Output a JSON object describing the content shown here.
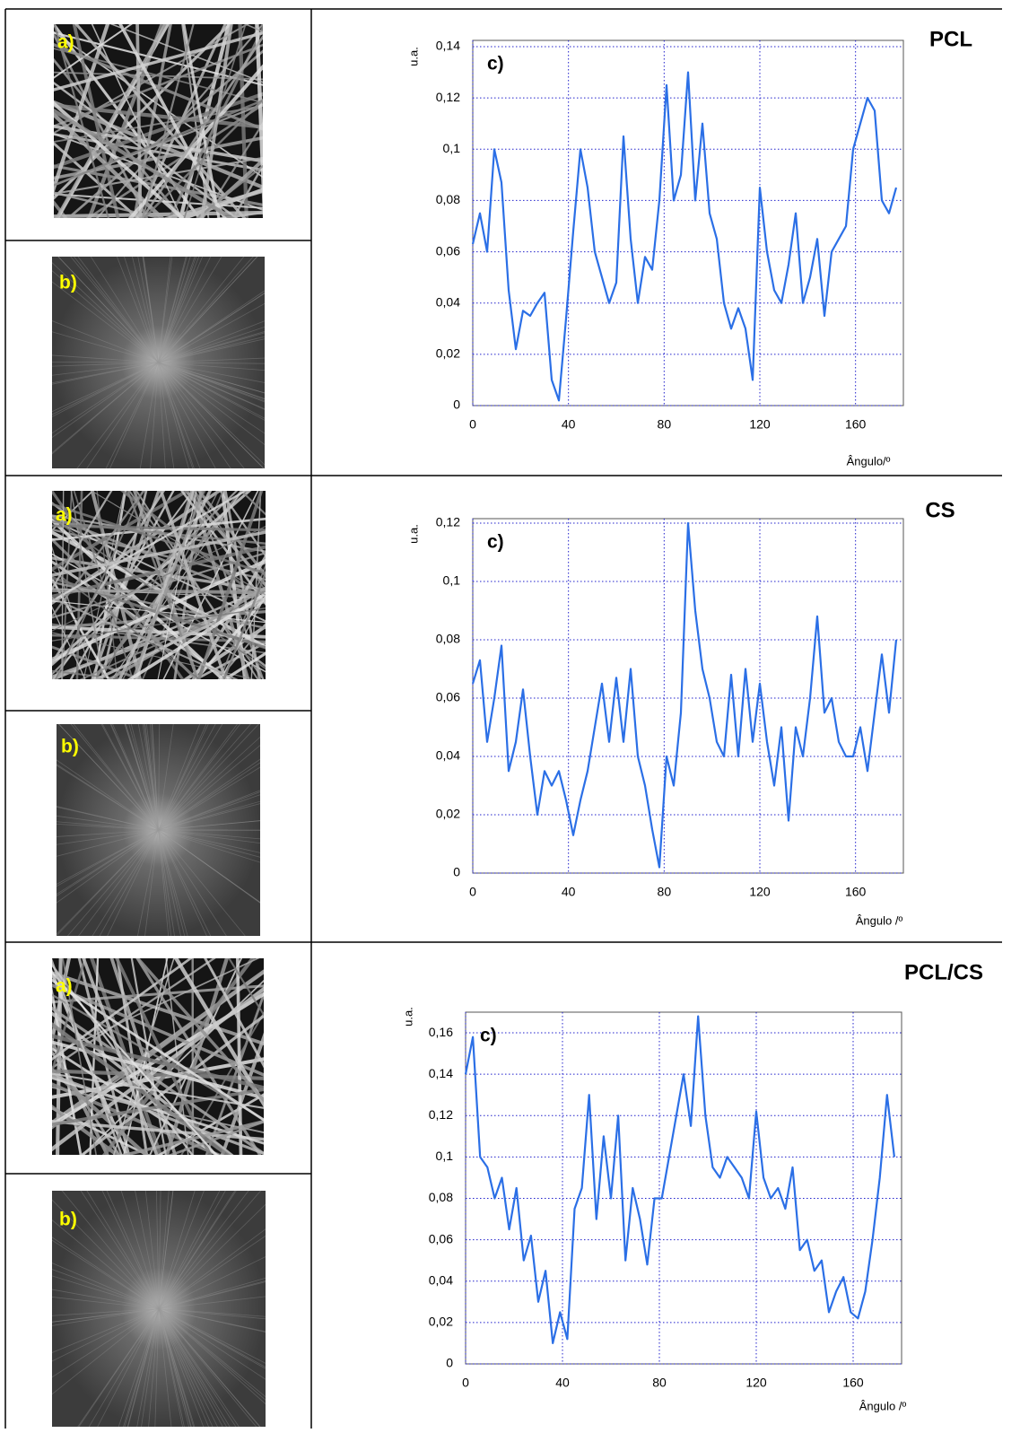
{
  "image_labels": [
    [
      "a)",
      "b)"
    ],
    [
      "a)",
      "b)"
    ],
    [
      "a)",
      "b)"
    ]
  ],
  "chart_data": [
    {
      "type": "line",
      "title": "PCL",
      "annotation": "c)",
      "ylabel": "u.a.",
      "xlabel": "Ângulo/º",
      "color": "#2b6fe6",
      "grid": true,
      "x": [
        0,
        3,
        6,
        9,
        12,
        15,
        18,
        21,
        24,
        27,
        30,
        33,
        36,
        39,
        42,
        45,
        48,
        51,
        54,
        57,
        60,
        63,
        66,
        69,
        72,
        75,
        78,
        81,
        84,
        87,
        90,
        93,
        96,
        99,
        102,
        105,
        108,
        111,
        114,
        117,
        120,
        123,
        126,
        129,
        132,
        135,
        138,
        141,
        144,
        147,
        150,
        153,
        156,
        159,
        162,
        165,
        168,
        171,
        174,
        177
      ],
      "values": [
        0.063,
        0.075,
        0.06,
        0.1,
        0.087,
        0.045,
        0.022,
        0.037,
        0.035,
        0.04,
        0.044,
        0.01,
        0.002,
        0.034,
        0.068,
        0.1,
        0.085,
        0.06,
        0.05,
        0.04,
        0.048,
        0.105,
        0.065,
        0.04,
        0.058,
        0.053,
        0.08,
        0.125,
        0.08,
        0.09,
        0.13,
        0.08,
        0.11,
        0.075,
        0.065,
        0.04,
        0.03,
        0.038,
        0.03,
        0.01,
        0.085,
        0.06,
        0.045,
        0.04,
        0.055,
        0.075,
        0.04,
        0.05,
        0.065,
        0.035,
        0.06,
        0.065,
        0.07,
        0.1,
        0.11,
        0.12,
        0.115,
        0.08,
        0.075,
        0.085
      ],
      "xlim": [
        0,
        180
      ],
      "ylim": [
        0,
        0.14
      ],
      "xticks": [
        0,
        40,
        80,
        120,
        160
      ],
      "yticks": [
        0,
        {
          "value": 0.02,
          "label": "0,02"
        },
        {
          "value": 0.04,
          "label": "0,04"
        },
        {
          "value": 0.06,
          "label": "0,06"
        },
        {
          "value": 0.08,
          "label": "0,08"
        },
        {
          "value": 0.1,
          "label": "0,1"
        },
        {
          "value": 0.12,
          "label": "0,12"
        },
        {
          "value": 0.14,
          "label": "0,14"
        }
      ]
    },
    {
      "type": "line",
      "title": "CS",
      "annotation": "c)",
      "ylabel": "u.a.",
      "xlabel": "Ângulo /º",
      "color": "#2b6fe6",
      "grid": true,
      "x": [
        0,
        3,
        6,
        9,
        12,
        15,
        18,
        21,
        24,
        27,
        30,
        33,
        36,
        39,
        42,
        45,
        48,
        51,
        54,
        57,
        60,
        63,
        66,
        69,
        72,
        75,
        78,
        81,
        84,
        87,
        90,
        93,
        96,
        99,
        102,
        105,
        108,
        111,
        114,
        117,
        120,
        123,
        126,
        129,
        132,
        135,
        138,
        141,
        144,
        147,
        150,
        153,
        156,
        159,
        162,
        165,
        168,
        171,
        174,
        177
      ],
      "values": [
        0.065,
        0.073,
        0.045,
        0.06,
        0.078,
        0.035,
        0.045,
        0.063,
        0.04,
        0.02,
        0.035,
        0.03,
        0.035,
        0.025,
        0.013,
        0.025,
        0.035,
        0.05,
        0.065,
        0.045,
        0.067,
        0.045,
        0.07,
        0.04,
        0.03,
        0.015,
        0.002,
        0.04,
        0.03,
        0.055,
        0.12,
        0.09,
        0.07,
        0.06,
        0.045,
        0.04,
        0.068,
        0.04,
        0.07,
        0.045,
        0.065,
        0.045,
        0.03,
        0.05,
        0.018,
        0.05,
        0.04,
        0.06,
        0.088,
        0.055,
        0.06,
        0.045,
        0.04,
        0.04,
        0.05,
        0.035,
        0.055,
        0.075,
        0.055,
        0.08
      ],
      "xlim": [
        0,
        180
      ],
      "ylim": [
        0,
        0.12
      ],
      "xticks": [
        0,
        40,
        80,
        120,
        160
      ],
      "yticks": [
        0,
        {
          "value": 0.02,
          "label": "0,02"
        },
        {
          "value": 0.04,
          "label": "0,04"
        },
        {
          "value": 0.06,
          "label": "0,06"
        },
        {
          "value": 0.08,
          "label": "0,08"
        },
        {
          "value": 0.1,
          "label": "0,1"
        },
        {
          "value": 0.12,
          "label": "0,12"
        }
      ]
    },
    {
      "type": "line",
      "title": "PCL/CS",
      "annotation": "c)",
      "ylabel": "u.a.",
      "xlabel": "Ângulo /º",
      "color": "#2b6fe6",
      "grid": true,
      "x": [
        0,
        3,
        6,
        9,
        12,
        15,
        18,
        21,
        24,
        27,
        30,
        33,
        36,
        39,
        42,
        45,
        48,
        51,
        54,
        57,
        60,
        63,
        66,
        69,
        72,
        75,
        78,
        81,
        84,
        87,
        90,
        93,
        96,
        99,
        102,
        105,
        108,
        111,
        114,
        117,
        120,
        123,
        126,
        129,
        132,
        135,
        138,
        141,
        144,
        147,
        150,
        153,
        156,
        159,
        162,
        165,
        168,
        171,
        174,
        177
      ],
      "values": [
        0.14,
        0.158,
        0.1,
        0.095,
        0.08,
        0.09,
        0.065,
        0.085,
        0.05,
        0.062,
        0.03,
        0.045,
        0.01,
        0.025,
        0.012,
        0.075,
        0.085,
        0.13,
        0.07,
        0.11,
        0.08,
        0.12,
        0.05,
        0.085,
        0.07,
        0.048,
        0.08,
        0.08,
        0.1,
        0.12,
        0.14,
        0.115,
        0.168,
        0.12,
        0.095,
        0.09,
        0.1,
        0.095,
        0.09,
        0.08,
        0.122,
        0.09,
        0.08,
        0.085,
        0.075,
        0.095,
        0.055,
        0.06,
        0.045,
        0.05,
        0.025,
        0.035,
        0.042,
        0.025,
        0.022,
        0.035,
        0.06,
        0.09,
        0.13,
        0.1
      ],
      "xlim": [
        0,
        180
      ],
      "ylim": [
        0,
        0.17
      ],
      "xticks": [
        0,
        40,
        80,
        120,
        160
      ],
      "yticks": [
        0,
        {
          "value": 0.02,
          "label": "0,02"
        },
        {
          "value": 0.04,
          "label": "0,04"
        },
        {
          "value": 0.06,
          "label": "0,06"
        },
        {
          "value": 0.08,
          "label": "0,08"
        },
        {
          "value": 0.1,
          "label": "0,1"
        },
        {
          "value": 0.12,
          "label": "0,12"
        },
        {
          "value": 0.14,
          "label": "0,14"
        },
        {
          "value": 0.16,
          "label": "0,16"
        }
      ]
    }
  ]
}
